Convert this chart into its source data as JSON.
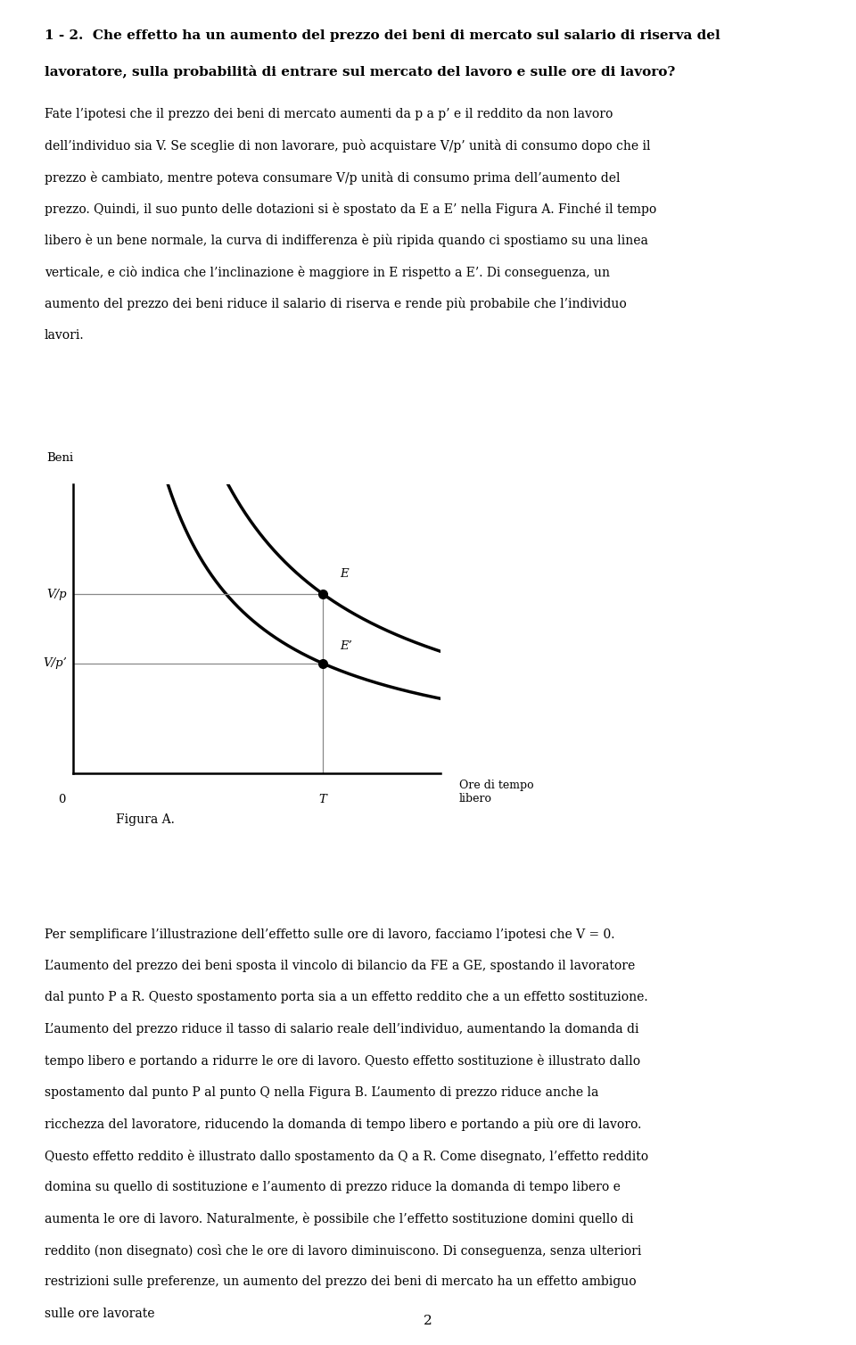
{
  "title_line1": "1 - 2.  Che effetto ha un aumento del prezzo dei beni di mercato sul salario di riserva del",
  "title_line2": "lavoratore, sulla probabilità di entrare sul mercato del lavoro e sulle ore di lavoro?",
  "para1_lines": [
    "Fate l’ipotesi che il prezzo dei beni di mercato aumenti da p a p’ e il reddito da non lavoro",
    "dell’individuo sia V. Se sceglie di non lavorare, può acquistare V/p’ unità di consumo dopo che il",
    "prezzo è cambiato, mentre poteva consumare V/p unità di consumo prima dell’aumento del",
    "prezzo. Quindi, il suo punto delle dotazioni si è spostato da E a E’ nella Figura A. Finché il tempo",
    "libero è un bene normale, la curva di indifferenza è più ripida quando ci spostiamo su una linea",
    "verticale, e ciò indica che l’inclinazione è maggiore in E rispetto a E’. Di conseguenza, un",
    "aumento del prezzo dei beni riduce il salario di riserva e rende più probabile che l’individuo",
    "lavori."
  ],
  "fig_ylabel": "Beni",
  "fig_xlabel_line1": "Ore di tempo",
  "fig_xlabel_line2": "libero",
  "fig_caption": "Figura A.",
  "label_Vp": "V/p",
  "label_Vpp": "V/p’",
  "label_T": "T",
  "label_E": "E",
  "label_Ep": "E’",
  "label_0": "0",
  "para2_lines": [
    "Per semplificare l’illustrazione dell’effetto sulle ore di lavoro, facciamo l’ipotesi che V = 0.",
    "L’aumento del prezzo dei beni sposta il vincolo di bilancio da FE a GE, spostando il lavoratore",
    "dal punto P a R. Questo spostamento porta sia a un effetto reddito che a un effetto sostituzione.",
    "L’aumento del prezzo riduce il tasso di salario reale dell’individuo, aumentando la domanda di",
    "tempo libero e portando a ridurre le ore di lavoro. Questo effetto sostituzione è illustrato dallo",
    "spostamento dal punto P al punto Q nella Figura B. L’aumento di prezzo riduce anche la",
    "ricchezza del lavoratore, riducendo la domanda di tempo libero e portando a più ore di lavoro.",
    "Questo effetto reddito è illustrato dallo spostamento da Q a R. Come disegnato, l’effetto reddito",
    "domina su quello di sostituzione e l’aumento di prezzo riduce la domanda di tempo libero e",
    "aumenta le ore di lavoro. Naturalmente, è possibile che l’effetto sostituzione domini quello di",
    "reddito (non disegnato) così che le ore di lavoro diminuiscono. Di conseguenza, senza ulteriori",
    "restrizioni sulle preferenze, un aumento del prezzo dei beni di mercato ha un effetto ambiguo",
    "sulle ore lavorate"
  ],
  "page_number": "2",
  "background_color": "#ffffff",
  "text_color": "#000000",
  "curve_color": "#000000",
  "line_color": "#888888",
  "dot_color": "#000000",
  "T": 0.68,
  "Vp": 0.62,
  "Vpp": 0.38
}
